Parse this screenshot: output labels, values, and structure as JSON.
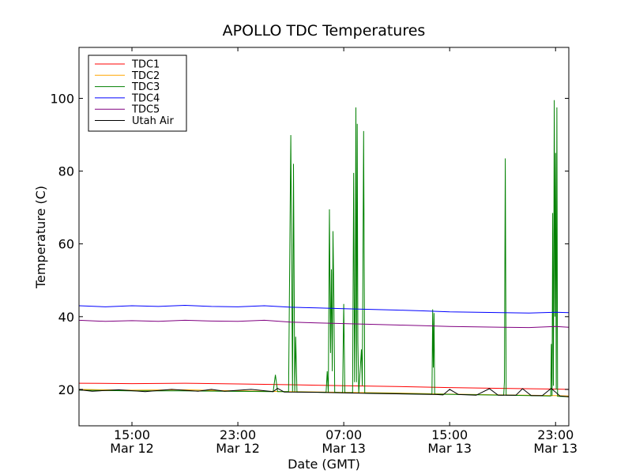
{
  "chart_data": {
    "type": "line",
    "title": "APOLLO TDC Temperatures",
    "xlabel": "Date (GMT)",
    "ylabel": "Temperature (C)",
    "xlim": [
      "2010-03-12T11:00",
      "2010-03-14T00:00"
    ],
    "ylim": [
      10,
      114
    ],
    "y_ticks": [
      20,
      40,
      60,
      80,
      100
    ],
    "x_ticks": [
      {
        "t": "2010-03-12T15:00",
        "time": "15:00",
        "date": "Mar 12"
      },
      {
        "t": "2010-03-12T23:00",
        "time": "23:00",
        "date": "Mar 12"
      },
      {
        "t": "2010-03-13T07:00",
        "time": "07:00",
        "date": "Mar 13"
      },
      {
        "t": "2010-03-13T15:00",
        "time": "15:00",
        "date": "Mar 13"
      },
      {
        "t": "2010-03-13T23:00",
        "time": "23:00",
        "date": "Mar 13"
      }
    ],
    "legend_position": "top-left",
    "grid": false,
    "series": [
      {
        "name": "TDC1",
        "color": "#ff0000",
        "points": [
          [
            "2010-03-12T11:00",
            21.7
          ],
          [
            "2010-03-12T15:00",
            21.6
          ],
          [
            "2010-03-12T19:00",
            21.7
          ],
          [
            "2010-03-12T23:00",
            21.5
          ],
          [
            "2010-03-13T03:00",
            21.3
          ],
          [
            "2010-03-13T07:00",
            21.0
          ],
          [
            "2010-03-13T11:00",
            20.8
          ],
          [
            "2010-03-13T15:00",
            20.5
          ],
          [
            "2010-03-13T19:00",
            20.3
          ],
          [
            "2010-03-13T23:00",
            20.1
          ],
          [
            "2010-03-14T00:00",
            20.0
          ]
        ]
      },
      {
        "name": "TDC2",
        "color": "#ffa500",
        "points": [
          [
            "2010-03-12T11:00",
            20.0
          ],
          [
            "2010-03-12T15:00",
            19.8
          ],
          [
            "2010-03-12T19:00",
            19.9
          ],
          [
            "2010-03-12T23:00",
            19.6
          ],
          [
            "2010-03-13T03:00",
            19.4
          ],
          [
            "2010-03-13T07:00",
            19.2
          ],
          [
            "2010-03-13T11:00",
            19.0
          ],
          [
            "2010-03-13T15:00",
            18.7
          ],
          [
            "2010-03-13T19:00",
            18.5
          ],
          [
            "2010-03-13T23:00",
            18.3
          ],
          [
            "2010-03-14T00:00",
            18.2
          ]
        ]
      },
      {
        "name": "TDC3",
        "color": "#008000",
        "points": [
          [
            "2010-03-12T11:00",
            19.8
          ],
          [
            "2010-03-12T15:00",
            19.6
          ],
          [
            "2010-03-12T19:00",
            19.6
          ],
          [
            "2010-03-13T01:40",
            19.4
          ],
          [
            "2010-03-13T01:50",
            24.0
          ],
          [
            "2010-03-13T02:00",
            19.4
          ],
          [
            "2010-03-13T02:50",
            19.4
          ],
          [
            "2010-03-13T03:00",
            89.9
          ],
          [
            "2010-03-13T03:08",
            19.4
          ],
          [
            "2010-03-13T03:12",
            82.0
          ],
          [
            "2010-03-13T03:18",
            19.4
          ],
          [
            "2010-03-13T03:22",
            34.5
          ],
          [
            "2010-03-13T03:28",
            19.3
          ],
          [
            "2010-03-13T05:40",
            19.2
          ],
          [
            "2010-03-13T05:45",
            25.0
          ],
          [
            "2010-03-13T05:50",
            19.2
          ],
          [
            "2010-03-13T05:55",
            69.5
          ],
          [
            "2010-03-13T06:00",
            30.0
          ],
          [
            "2010-03-13T06:04",
            53.0
          ],
          [
            "2010-03-13T06:08",
            25.0
          ],
          [
            "2010-03-13T06:11",
            63.5
          ],
          [
            "2010-03-13T06:15",
            45.5
          ],
          [
            "2010-03-13T06:19",
            19.2
          ],
          [
            "2010-03-13T06:55",
            19.1
          ],
          [
            "2010-03-13T07:00",
            43.5
          ],
          [
            "2010-03-13T07:05",
            19.1
          ],
          [
            "2010-03-13T07:40",
            19.1
          ],
          [
            "2010-03-13T07:45",
            79.5
          ],
          [
            "2010-03-13T07:49",
            22.0
          ],
          [
            "2010-03-13T07:52",
            45.5
          ],
          [
            "2010-03-13T07:55",
            97.5
          ],
          [
            "2010-03-13T07:58",
            22.0
          ],
          [
            "2010-03-13T08:01",
            93.0
          ],
          [
            "2010-03-13T08:04",
            33.0
          ],
          [
            "2010-03-13T08:08",
            19.0
          ],
          [
            "2010-03-13T08:20",
            31.0
          ],
          [
            "2010-03-13T08:24",
            21.0
          ],
          [
            "2010-03-13T08:30",
            91.0
          ],
          [
            "2010-03-13T08:35",
            19.0
          ],
          [
            "2010-03-13T13:40",
            18.7
          ],
          [
            "2010-03-13T13:43",
            42.0
          ],
          [
            "2010-03-13T13:46",
            26.0
          ],
          [
            "2010-03-13T13:49",
            41.0
          ],
          [
            "2010-03-13T13:52",
            18.7
          ],
          [
            "2010-03-13T19:05",
            18.4
          ],
          [
            "2010-03-13T19:08",
            22.0
          ],
          [
            "2010-03-13T19:12",
            83.5
          ],
          [
            "2010-03-13T19:16",
            18.4
          ],
          [
            "2010-03-13T22:38",
            18.2
          ],
          [
            "2010-03-13T22:41",
            32.5
          ],
          [
            "2010-03-13T22:44",
            18.2
          ],
          [
            "2010-03-13T22:47",
            68.5
          ],
          [
            "2010-03-13T22:50",
            21.0
          ],
          [
            "2010-03-13T22:54",
            99.5
          ],
          [
            "2010-03-13T22:57",
            40.0
          ],
          [
            "2010-03-13T23:00",
            85.0
          ],
          [
            "2010-03-13T23:03",
            20.0
          ],
          [
            "2010-03-13T23:06",
            97.5
          ],
          [
            "2010-03-13T23:09",
            18.1
          ],
          [
            "2010-03-14T00:00",
            18.0
          ]
        ]
      },
      {
        "name": "TDC4",
        "color": "#0000ff",
        "points": [
          [
            "2010-03-12T11:00",
            43.0
          ],
          [
            "2010-03-12T13:00",
            42.7
          ],
          [
            "2010-03-12T15:00",
            43.0
          ],
          [
            "2010-03-12T17:00",
            42.8
          ],
          [
            "2010-03-12T19:00",
            43.1
          ],
          [
            "2010-03-12T21:00",
            42.8
          ],
          [
            "2010-03-12T23:00",
            42.7
          ],
          [
            "2010-03-13T01:00",
            43.0
          ],
          [
            "2010-03-13T03:00",
            42.6
          ],
          [
            "2010-03-13T05:00",
            42.4
          ],
          [
            "2010-03-13T07:00",
            42.2
          ],
          [
            "2010-03-13T09:00",
            42.0
          ],
          [
            "2010-03-13T11:00",
            41.8
          ],
          [
            "2010-03-13T13:00",
            41.6
          ],
          [
            "2010-03-13T15:00",
            41.3
          ],
          [
            "2010-03-13T17:00",
            41.2
          ],
          [
            "2010-03-13T19:00",
            41.1
          ],
          [
            "2010-03-13T21:00",
            41.0
          ],
          [
            "2010-03-13T23:00",
            41.2
          ],
          [
            "2010-03-14T00:00",
            41.1
          ]
        ]
      },
      {
        "name": "TDC5",
        "color": "#800080",
        "points": [
          [
            "2010-03-12T11:00",
            39.0
          ],
          [
            "2010-03-12T13:00",
            38.7
          ],
          [
            "2010-03-12T15:00",
            38.9
          ],
          [
            "2010-03-12T17:00",
            38.7
          ],
          [
            "2010-03-12T19:00",
            39.0
          ],
          [
            "2010-03-12T21:00",
            38.8
          ],
          [
            "2010-03-12T23:00",
            38.7
          ],
          [
            "2010-03-13T01:00",
            39.0
          ],
          [
            "2010-03-13T03:00",
            38.5
          ],
          [
            "2010-03-13T05:00",
            38.3
          ],
          [
            "2010-03-13T07:00",
            38.1
          ],
          [
            "2010-03-13T09:00",
            37.9
          ],
          [
            "2010-03-13T11:00",
            37.7
          ],
          [
            "2010-03-13T13:00",
            37.5
          ],
          [
            "2010-03-13T15:00",
            37.3
          ],
          [
            "2010-03-13T17:00",
            37.2
          ],
          [
            "2010-03-13T19:00",
            37.1
          ],
          [
            "2010-03-13T21:00",
            37.0
          ],
          [
            "2010-03-13T23:00",
            37.3
          ],
          [
            "2010-03-14T00:00",
            37.1
          ]
        ]
      },
      {
        "name": "Utah Air",
        "color": "#000000",
        "points": [
          [
            "2010-03-12T11:00",
            19.9
          ],
          [
            "2010-03-12T12:00",
            19.5
          ],
          [
            "2010-03-12T14:00",
            19.9
          ],
          [
            "2010-03-12T16:00",
            19.4
          ],
          [
            "2010-03-12T18:00",
            20.0
          ],
          [
            "2010-03-12T20:00",
            19.5
          ],
          [
            "2010-03-12T21:00",
            20.0
          ],
          [
            "2010-03-12T22:00",
            19.5
          ],
          [
            "2010-03-13T00:00",
            20.0
          ],
          [
            "2010-03-13T01:40",
            19.4
          ],
          [
            "2010-03-13T02:00",
            20.3
          ],
          [
            "2010-03-13T02:30",
            19.3
          ],
          [
            "2010-03-13T05:00",
            19.2
          ],
          [
            "2010-03-13T09:00",
            18.9
          ],
          [
            "2010-03-13T14:00",
            18.6
          ],
          [
            "2010-03-13T14:30",
            18.5
          ],
          [
            "2010-03-13T15:00",
            20.0
          ],
          [
            "2010-03-13T15:40",
            18.6
          ],
          [
            "2010-03-13T17:00",
            18.4
          ],
          [
            "2010-03-13T18:00",
            20.2
          ],
          [
            "2010-03-13T18:40",
            18.4
          ],
          [
            "2010-03-13T20:00",
            18.4
          ],
          [
            "2010-03-13T20:30",
            20.2
          ],
          [
            "2010-03-13T21:10",
            18.3
          ],
          [
            "2010-03-13T22:00",
            18.3
          ],
          [
            "2010-03-13T22:40",
            20.3
          ],
          [
            "2010-03-13T23:20",
            18.2
          ],
          [
            "2010-03-14T00:00",
            18.0
          ]
        ]
      }
    ]
  }
}
